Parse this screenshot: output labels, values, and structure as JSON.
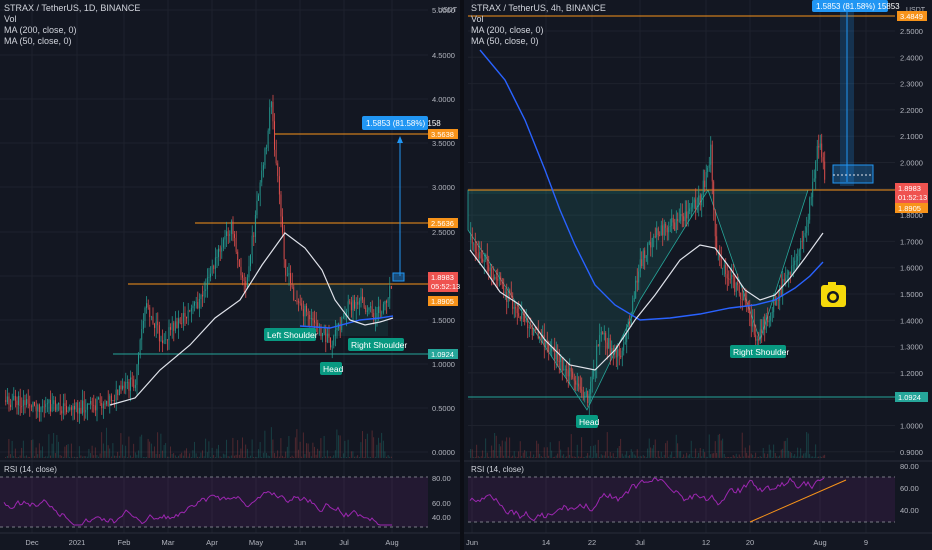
{
  "left": {
    "title": "STRAX / TetherUS, 1D, BINANCE",
    "indicators": [
      "Vol",
      "MA (200, close, 0)",
      "MA (50, close, 0)"
    ],
    "currency": "USDT",
    "y_ticks": [
      "5.0000",
      "4.5000",
      "4.0000",
      "3.5000",
      "3.0000",
      "2.5000",
      "2.0000",
      "1.5000",
      "1.0000",
      "0.5000",
      "0.0000"
    ],
    "x_ticks": [
      "Dec",
      "2021",
      "Feb",
      "Mar",
      "Apr",
      "May",
      "Jun",
      "Jul",
      "Aug"
    ],
    "price_tags": {
      "target": "3.5638",
      "level_mid": "2.5636",
      "current": "1.8983",
      "countdown": "05:52:13",
      "ma": "1.8905",
      "support": "1.0924"
    },
    "measure_label": "1.5853 (81.58%) 158",
    "labels": {
      "left_shoulder": "Left Shoulder",
      "head": "Head",
      "right_shoulder": "Right Shoulder"
    },
    "rsi": {
      "title": "RSI (14, close)",
      "ticks": [
        "80.00",
        "60.00",
        "40.00"
      ]
    }
  },
  "right": {
    "title": "STRAX / TetherUS, 4h, BINANCE",
    "indicators": [
      "Vol",
      "MA (200, close, 0)",
      "MA (50, close, 0)"
    ],
    "currency": "USDT",
    "y_ticks": [
      "2.5000",
      "2.4000",
      "2.3000",
      "2.2000",
      "2.1000",
      "2.0000",
      "1.9000",
      "1.8000",
      "1.7000",
      "1.6000",
      "1.5000",
      "1.4000",
      "1.3000",
      "1.2000",
      "1.1000",
      "1.0000",
      "0.9000"
    ],
    "x_ticks": [
      "Jun",
      "14",
      "22",
      "Jul",
      "12",
      "20",
      "Aug",
      "9"
    ],
    "price_tags": {
      "target": "3.4849",
      "current": "1.8983",
      "countdown": "01:52:13",
      "ma": "1.8905",
      "support": "1.0924"
    },
    "measure_label": "1.5853 (81.58%) 15853",
    "labels": {
      "head": "Head",
      "right_shoulder": "Right Shoulder"
    },
    "rsi": {
      "title": "RSI (14, close)",
      "ticks": [
        "80.00",
        "60.00",
        "40.00"
      ]
    }
  },
  "colors": {
    "background": "#131722",
    "up": "#26a69a",
    "down": "#ef5350",
    "ma200": "#2962ff",
    "ma50": "#e0e3eb",
    "level": "#f7931a",
    "support": "#26a69a",
    "measure": "#2196f3",
    "rsi": "#9c27b0",
    "label_bg": "#089981"
  }
}
